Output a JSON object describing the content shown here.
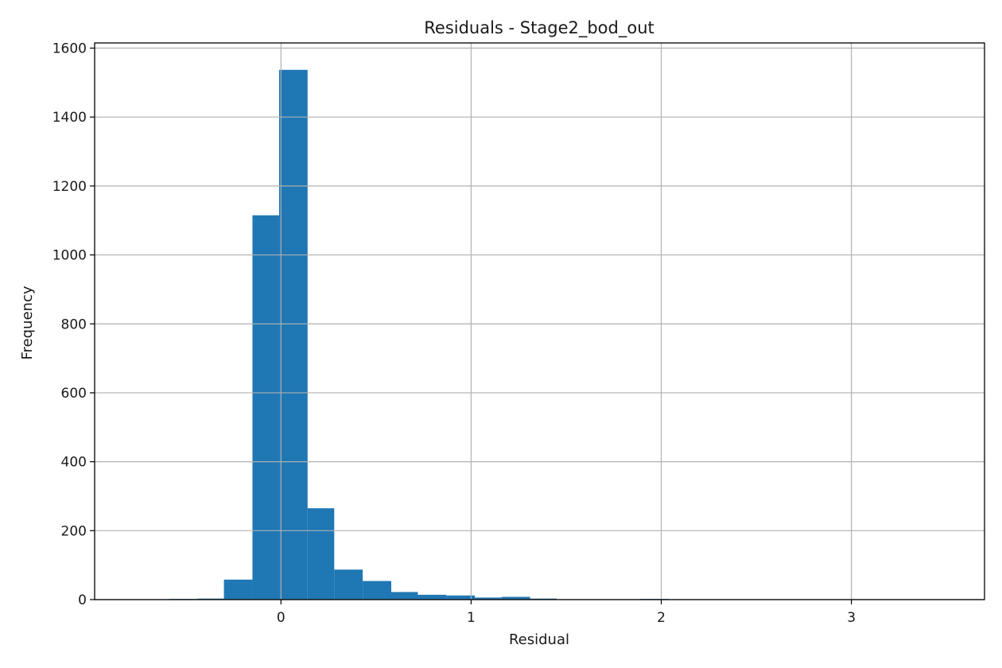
{
  "chart_data": {
    "type": "bar",
    "title": "Residuals - Stage2_bod_out",
    "xlabel": "Residual",
    "ylabel": "Frequency",
    "bar_color": "#1f77b4",
    "grid_color": "#b0b0b0",
    "grid": true,
    "xlim": [
      -0.98,
      3.7
    ],
    "ylim": [
      0,
      1615
    ],
    "xticks": [
      0,
      1,
      2,
      3
    ],
    "yticks": [
      0,
      200,
      400,
      600,
      800,
      1000,
      1200,
      1400,
      1600
    ],
    "bins": [
      {
        "x0": -0.59,
        "x1": -0.44,
        "count": 2
      },
      {
        "x0": -0.44,
        "x1": -0.3,
        "count": 3
      },
      {
        "x0": -0.3,
        "x1": -0.15,
        "count": 58
      },
      {
        "x0": -0.15,
        "x1": -0.01,
        "count": 1115
      },
      {
        "x0": -0.01,
        "x1": 0.14,
        "count": 1537
      },
      {
        "x0": 0.14,
        "x1": 0.28,
        "count": 265
      },
      {
        "x0": 0.28,
        "x1": 0.43,
        "count": 87
      },
      {
        "x0": 0.43,
        "x1": 0.58,
        "count": 54
      },
      {
        "x0": 0.58,
        "x1": 0.72,
        "count": 22
      },
      {
        "x0": 0.72,
        "x1": 0.87,
        "count": 14
      },
      {
        "x0": 0.87,
        "x1": 1.02,
        "count": 12
      },
      {
        "x0": 1.02,
        "x1": 1.16,
        "count": 6
      },
      {
        "x0": 1.16,
        "x1": 1.31,
        "count": 8
      },
      {
        "x0": 1.31,
        "x1": 1.45,
        "count": 3
      },
      {
        "x0": 1.45,
        "x1": 1.6,
        "count": 1
      },
      {
        "x0": 1.6,
        "x1": 1.75,
        "count": 0
      },
      {
        "x0": 1.75,
        "x1": 1.89,
        "count": 0
      },
      {
        "x0": 1.89,
        "x1": 2.04,
        "count": 2
      },
      {
        "x0": 2.04,
        "x1": 2.18,
        "count": 0
      },
      {
        "x0": 2.18,
        "x1": 2.33,
        "count": 0
      },
      {
        "x0": 2.33,
        "x1": 2.48,
        "count": 0
      },
      {
        "x0": 2.48,
        "x1": 2.62,
        "count": 0
      },
      {
        "x0": 2.62,
        "x1": 2.77,
        "count": 0
      },
      {
        "x0": 2.77,
        "x1": 2.91,
        "count": 0
      },
      {
        "x0": 2.91,
        "x1": 3.06,
        "count": 0
      },
      {
        "x0": 3.06,
        "x1": 3.21,
        "count": 0
      },
      {
        "x0": 3.21,
        "x1": 3.35,
        "count": 0
      },
      {
        "x0": 3.35,
        "x1": 3.5,
        "count": 0
      },
      {
        "x0": 3.5,
        "x1": 3.65,
        "count": 1
      }
    ]
  }
}
